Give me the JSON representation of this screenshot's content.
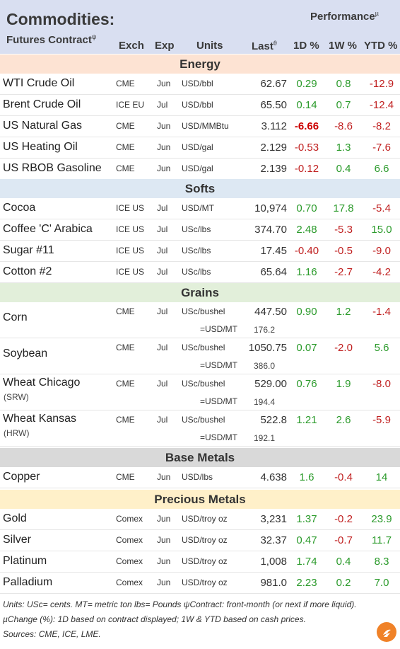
{
  "header": {
    "title": "Commodities:",
    "performance_label": "Performance",
    "performance_mark": "µ",
    "subtitle": "Futures Contract",
    "subtitle_mark": "ψ",
    "columns": {
      "exch": "Exch",
      "exp": "Exp",
      "units": "Units",
      "last": "Last",
      "last_mark": "θ",
      "d1": "1D %",
      "w1": "1W %",
      "ytd": "YTD %"
    }
  },
  "colors": {
    "energy": "#fde3d3",
    "softs": "#dde8f3",
    "grains": "#e2efda",
    "base": "#d9d9d9",
    "precious": "#fff0c9",
    "header": "#d9dff1",
    "positive": "#2a9a2a",
    "negative": "#c01f1f"
  },
  "sections": [
    {
      "name": "Energy",
      "rows": [
        {
          "name": "WTI Crude Oil",
          "exch": "CME",
          "exp": "Jun",
          "units": "USD/bbl",
          "last": "62.67",
          "d1": "0.29",
          "w1": "0.8",
          "ytd": "-12.9"
        },
        {
          "name": "Brent Crude Oil",
          "exch": "ICE EU",
          "exp": "Jul",
          "units": "USD/bbl",
          "last": "65.50",
          "d1": "0.14",
          "w1": "0.7",
          "ytd": "-12.4"
        },
        {
          "name": "US Natural Gas",
          "exch": "CME",
          "exp": "Jun",
          "units": "USD/MMBtu",
          "last": "3.112",
          "d1": "-6.66",
          "w1": "-8.6",
          "ytd": "-8.2",
          "d1_bold": true
        },
        {
          "name": "US Heating Oil",
          "exch": "CME",
          "exp": "Jun",
          "units": "USD/gal",
          "last": "2.129",
          "d1": "-0.53",
          "w1": "1.3",
          "ytd": "-7.6"
        },
        {
          "name": "US RBOB Gasoline",
          "exch": "CME",
          "exp": "Jun",
          "units": "USD/gal",
          "last": "2.139",
          "d1": "-0.12",
          "w1": "0.4",
          "ytd": "6.6"
        }
      ]
    },
    {
      "name": "Softs",
      "rows": [
        {
          "name": "Cocoa",
          "exch": "ICE US",
          "exp": "Jul",
          "units": "USD/MT",
          "last": "10,974",
          "d1": "0.70",
          "w1": "17.8",
          "ytd": "-5.4"
        },
        {
          "name": "Coffee 'C' Arabica",
          "exch": "ICE US",
          "exp": "Jul",
          "units": "USc/lbs",
          "last": "374.70",
          "d1": "2.48",
          "w1": "-5.3",
          "ytd": "15.0"
        },
        {
          "name": "Sugar #11",
          "exch": "ICE US",
          "exp": "Jul",
          "units": "USc/lbs",
          "last": "17.45",
          "d1": "-0.40",
          "w1": "-0.5",
          "ytd": "-9.0"
        },
        {
          "name": "Cotton #2",
          "exch": "ICE US",
          "exp": "Jul",
          "units": "USc/lbs",
          "last": "65.64",
          "d1": "1.16",
          "w1": "-2.7",
          "ytd": "-4.2"
        }
      ]
    },
    {
      "name": "Grains",
      "rows": [
        {
          "name": "Corn",
          "sub": "",
          "exch": "CME",
          "exp": "Jul",
          "units": "USc/bushel",
          "last": "447.50",
          "d1": "0.90",
          "w1": "1.2",
          "ytd": "-1.4",
          "conv_units": "=USD/MT",
          "conv_val": "176.2"
        },
        {
          "name": "Soybean",
          "sub": "",
          "exch": "CME",
          "exp": "Jul",
          "units": "USc/bushel",
          "last": "1050.75",
          "d1": "0.07",
          "w1": "-2.0",
          "ytd": "5.6",
          "conv_units": "=USD/MT",
          "conv_val": "386.0"
        },
        {
          "name": "Wheat Chicago",
          "sub": "(SRW)",
          "exch": "CME",
          "exp": "Jul",
          "units": "USc/bushel",
          "last": "529.00",
          "d1": "0.76",
          "w1": "1.9",
          "ytd": "-8.0",
          "conv_units": "=USD/MT",
          "conv_val": "194.4"
        },
        {
          "name": "Wheat Kansas",
          "sub": "(HRW)",
          "exch": "CME",
          "exp": "Jul",
          "units": "USc/bushel",
          "last": "522.8",
          "d1": "1.21",
          "w1": "2.6",
          "ytd": "-5.9",
          "conv_units": "=USD/MT",
          "conv_val": "192.1"
        }
      ]
    },
    {
      "name": "Base Metals",
      "rows": [
        {
          "name": "Copper",
          "exch": "CME",
          "exp": "Jun",
          "units": "USD/lbs",
          "last": "4.638",
          "d1": "1.6",
          "w1": "-0.4",
          "ytd": "14"
        }
      ]
    },
    {
      "name": "Precious Metals",
      "rows": [
        {
          "name": "Gold",
          "exch": "Comex",
          "exp": "Jun",
          "units": "USD/troy oz",
          "last": "3,231",
          "d1": "1.37",
          "w1": "-0.2",
          "ytd": "23.9"
        },
        {
          "name": "Silver",
          "exch": "Comex",
          "exp": "Jun",
          "units": "USD/troy oz",
          "last": "32.37",
          "d1": "0.47",
          "w1": "-0.7",
          "ytd": "11.7"
        },
        {
          "name": "Platinum",
          "exch": "Comex",
          "exp": "Jun",
          "units": "USD/troy oz",
          "last": "1,008",
          "d1": "1.74",
          "w1": "0.4",
          "ytd": "8.3"
        },
        {
          "name": "Palladium",
          "exch": "Comex",
          "exp": "Jun",
          "units": "USD/troy oz",
          "last": "981.0",
          "d1": "2.23",
          "w1": "0.2",
          "ytd": "7.0"
        }
      ]
    }
  ],
  "footer": {
    "line1": "Units: USc= cents.   MT= metric ton    lbs= Pounds  ψContract: front-month (or next if more liquid).",
    "line2": "µChange (%): 1D based on contract displayed; 1W & YTD based on cash prices.",
    "line3": "Sources: CME, ICE, LME."
  },
  "logo_icon": "flame-logo-icon"
}
